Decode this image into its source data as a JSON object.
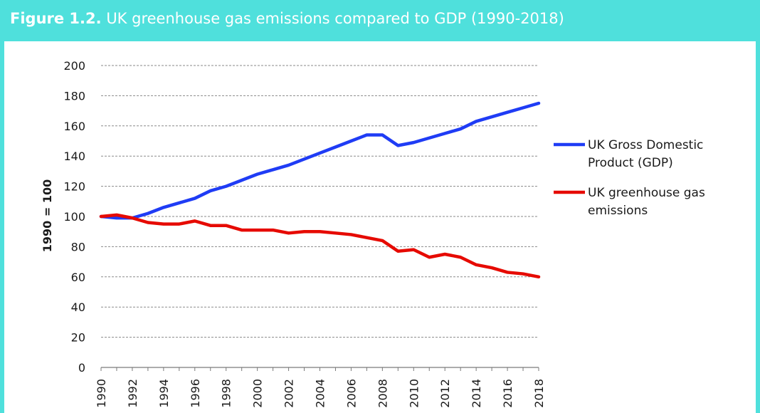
{
  "header": {
    "figure_label": "Figure 1.2.",
    "title": "UK greenhouse gas emissions compared to GDP (1990-2018)"
  },
  "colors": {
    "frame": "#4fe0dc",
    "gdp": "#1f3cf5",
    "emissions": "#e60a00",
    "grid": "#8a8a8a"
  },
  "chart_data": {
    "type": "line",
    "title": "UK greenhouse gas emissions compared to GDP (1990-2018)",
    "ylabel": "1990 = 100",
    "xlabel": "",
    "ylim": [
      0,
      200
    ],
    "yticks": [
      0,
      20,
      40,
      60,
      80,
      100,
      120,
      140,
      160,
      180,
      200
    ],
    "xticks": [
      "1990",
      "1992",
      "1994",
      "1996",
      "1998",
      "2000",
      "2002",
      "2004",
      "2006",
      "2008",
      "2010",
      "2012",
      "2014",
      "2016",
      "2018"
    ],
    "grid": "horizontal dashed",
    "legend": "right",
    "x": [
      1990,
      1991,
      1992,
      1993,
      1994,
      1995,
      1996,
      1997,
      1998,
      1999,
      2000,
      2001,
      2002,
      2003,
      2004,
      2005,
      2006,
      2007,
      2008,
      2009,
      2010,
      2011,
      2012,
      2013,
      2014,
      2015,
      2016,
      2017,
      2018
    ],
    "series": [
      {
        "name": "UK Gross Domestic Product (GDP)",
        "legend_lines": [
          "UK Gross Domestic",
          "Product (GDP)"
        ],
        "color": "#1f3cf5",
        "values": [
          100,
          99,
          99,
          102,
          106,
          109,
          112,
          117,
          120,
          124,
          128,
          131,
          134,
          138,
          142,
          146,
          150,
          154,
          154,
          147,
          149,
          152,
          155,
          158,
          163,
          166,
          169,
          172,
          175
        ]
      },
      {
        "name": "UK greenhouse gas emissions",
        "legend_lines": [
          "UK greenhouse gas",
          "emissions"
        ],
        "color": "#e60a00",
        "values": [
          100,
          101,
          99,
          96,
          95,
          95,
          97,
          94,
          94,
          91,
          91,
          91,
          89,
          90,
          90,
          89,
          88,
          86,
          84,
          77,
          78,
          73,
          75,
          73,
          68,
          66,
          63,
          62,
          60
        ]
      }
    ]
  }
}
